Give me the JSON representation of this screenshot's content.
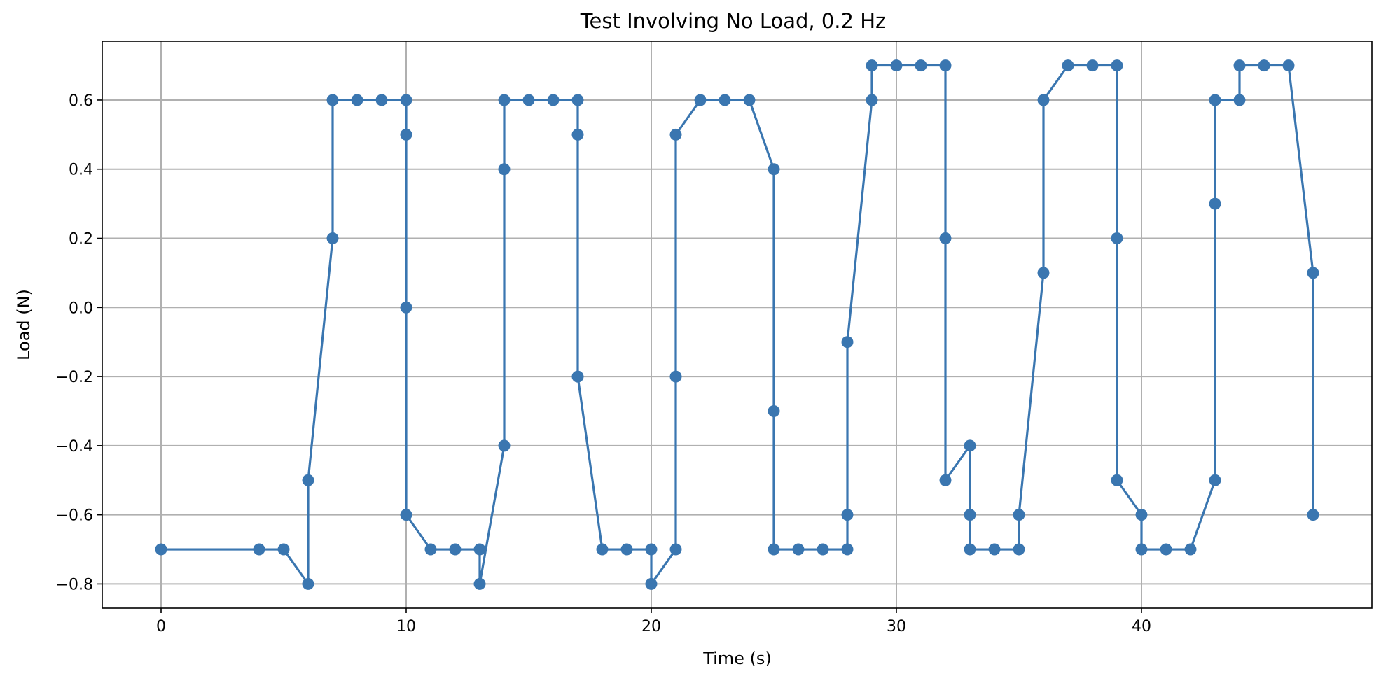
{
  "chart_data": {
    "type": "line",
    "title": "Test Involving No Load, 0.2 Hz",
    "xlabel": "Time (s)",
    "ylabel": "Load (N)",
    "xlim": [
      -2.4,
      49.4
    ],
    "ylim": [
      -0.87,
      0.77
    ],
    "x_ticks": [
      0,
      10,
      20,
      30,
      40
    ],
    "x_tick_labels": [
      "0",
      "10",
      "20",
      "30",
      "40"
    ],
    "y_ticks": [
      -0.8,
      -0.6,
      -0.4,
      -0.2,
      0.0,
      0.2,
      0.4,
      0.6
    ],
    "y_tick_labels": [
      "−0.8",
      "−0.6",
      "−0.4",
      "−0.2",
      "0.0",
      "0.2",
      "0.4",
      "0.6"
    ],
    "grid": true,
    "marker": "circle",
    "color": "#3a76b0",
    "series": [
      {
        "points": [
          [
            0,
            -0.7
          ],
          [
            4,
            -0.7
          ],
          [
            5,
            -0.7
          ],
          [
            6,
            -0.8
          ],
          [
            6,
            -0.5
          ],
          [
            7,
            0.2
          ],
          [
            7,
            0.6
          ],
          [
            8,
            0.6
          ],
          [
            9,
            0.6
          ],
          [
            10,
            0.6
          ],
          [
            10,
            0.5
          ],
          [
            10,
            0.0
          ],
          [
            10,
            -0.6
          ],
          [
            11,
            -0.7
          ],
          [
            12,
            -0.7
          ],
          [
            13,
            -0.7
          ],
          [
            13,
            -0.8
          ],
          [
            14,
            -0.4
          ],
          [
            14,
            0.4
          ],
          [
            14,
            0.6
          ],
          [
            15,
            0.6
          ],
          [
            16,
            0.6
          ],
          [
            17,
            0.6
          ],
          [
            17,
            0.5
          ],
          [
            17,
            -0.2
          ],
          [
            18,
            -0.7
          ],
          [
            19,
            -0.7
          ],
          [
            20,
            -0.7
          ],
          [
            20,
            -0.8
          ],
          [
            21,
            -0.7
          ],
          [
            21,
            -0.2
          ],
          [
            21,
            0.5
          ],
          [
            22,
            0.6
          ],
          [
            23,
            0.6
          ],
          [
            24,
            0.6
          ],
          [
            25,
            0.4
          ],
          [
            25,
            -0.3
          ],
          [
            25,
            -0.7
          ],
          [
            26,
            -0.7
          ],
          [
            27,
            -0.7
          ],
          [
            28,
            -0.7
          ],
          [
            28,
            -0.6
          ],
          [
            28,
            -0.1
          ],
          [
            29,
            0.6
          ],
          [
            29,
            0.7
          ],
          [
            30,
            0.7
          ],
          [
            31,
            0.7
          ],
          [
            32,
            0.7
          ],
          [
            32,
            0.2
          ],
          [
            32,
            -0.5
          ],
          [
            33,
            -0.4
          ],
          [
            33,
            -0.6
          ],
          [
            33,
            -0.7
          ],
          [
            34,
            -0.7
          ],
          [
            35,
            -0.7
          ],
          [
            35,
            -0.6
          ],
          [
            36,
            0.1
          ],
          [
            36,
            0.6
          ],
          [
            37,
            0.7
          ],
          [
            38,
            0.7
          ],
          [
            39,
            0.7
          ],
          [
            39,
            0.2
          ],
          [
            39,
            -0.5
          ],
          [
            40,
            -0.6
          ],
          [
            40,
            -0.7
          ],
          [
            41,
            -0.7
          ],
          [
            42,
            -0.7
          ],
          [
            43,
            -0.5
          ],
          [
            43,
            0.3
          ],
          [
            43,
            0.6
          ],
          [
            44,
            0.6
          ],
          [
            44,
            0.7
          ],
          [
            45,
            0.7
          ],
          [
            46,
            0.7
          ],
          [
            47,
            0.1
          ],
          [
            47,
            -0.6
          ]
        ]
      }
    ]
  }
}
